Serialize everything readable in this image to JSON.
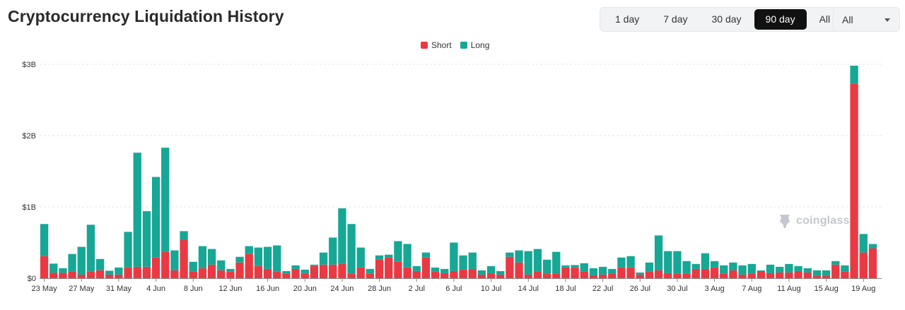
{
  "header": {
    "title": "Cryptocurrency Liquidation History"
  },
  "range_buttons": [
    {
      "label": "1 day",
      "active": false
    },
    {
      "label": "7 day",
      "active": false
    },
    {
      "label": "30 day",
      "active": false
    },
    {
      "label": "90 day",
      "active": true
    },
    {
      "label": "All",
      "active": false
    }
  ],
  "coin_select": {
    "value": "All"
  },
  "watermark": {
    "text": "coinglass"
  },
  "colors": {
    "short": "#ea3943",
    "long": "#16a795",
    "grid": "#e6e6e6"
  },
  "chart_data": {
    "type": "bar",
    "stacked": true,
    "unit": "USD",
    "ylim": [
      0,
      3000000000
    ],
    "yticks": [
      {
        "value": 0,
        "label": "$0"
      },
      {
        "value": 1000000000,
        "label": "$1B"
      },
      {
        "value": 2000000000,
        "label": "$2B"
      },
      {
        "value": 3000000000,
        "label": "$3B"
      }
    ],
    "x_tick_labels": [
      "23 May",
      "27 May",
      "31 May",
      "4 Jun",
      "8 Jun",
      "12 Jun",
      "16 Jun",
      "20 Jun",
      "24 Jun",
      "28 Jun",
      "2 Jul",
      "6 Jul",
      "10 Jul",
      "14 Jul",
      "18 Jul",
      "22 Jul",
      "26 Jul",
      "30 Jul",
      "3 Aug",
      "7 Aug",
      "11 Aug",
      "15 Aug",
      "19 Aug"
    ],
    "categories": [
      "23 May",
      "24 May",
      "25 May",
      "26 May",
      "27 May",
      "28 May",
      "29 May",
      "30 May",
      "31 May",
      "1 Jun",
      "2 Jun",
      "3 Jun",
      "4 Jun",
      "5 Jun",
      "6 Jun",
      "7 Jun",
      "8 Jun",
      "9 Jun",
      "10 Jun",
      "11 Jun",
      "12 Jun",
      "13 Jun",
      "14 Jun",
      "15 Jun",
      "16 Jun",
      "17 Jun",
      "18 Jun",
      "19 Jun",
      "20 Jun",
      "21 Jun",
      "22 Jun",
      "23 Jun",
      "24 Jun",
      "25 Jun",
      "26 Jun",
      "27 Jun",
      "28 Jun",
      "29 Jun",
      "30 Jun",
      "1 Jul",
      "2 Jul",
      "3 Jul",
      "4 Jul",
      "5 Jul",
      "6 Jul",
      "7 Jul",
      "8 Jul",
      "9 Jul",
      "10 Jul",
      "11 Jul",
      "12 Jul",
      "13 Jul",
      "14 Jul",
      "15 Jul",
      "16 Jul",
      "17 Jul",
      "18 Jul",
      "19 Jul",
      "20 Jul",
      "21 Jul",
      "22 Jul",
      "23 Jul",
      "24 Jul",
      "25 Jul",
      "26 Jul",
      "27 Jul",
      "28 Jul",
      "29 Jul",
      "30 Jul",
      "31 Jul",
      "1 Aug",
      "2 Aug",
      "3 Aug",
      "4 Aug",
      "5 Aug",
      "6 Aug",
      "7 Aug",
      "8 Aug",
      "9 Aug",
      "10 Aug",
      "11 Aug",
      "12 Aug",
      "13 Aug",
      "14 Aug",
      "15 Aug",
      "16 Aug",
      "17 Aug",
      "18 Aug",
      "19 Aug",
      "20 Aug"
    ],
    "series": [
      {
        "name": "Short",
        "values": [
          310,
          75,
          75,
          90,
          50,
          90,
          110,
          50,
          50,
          150,
          160,
          160,
          290,
          370,
          110,
          540,
          90,
          140,
          190,
          110,
          90,
          220,
          340,
          170,
          130,
          90,
          60,
          130,
          60,
          170,
          190,
          190,
          200,
          60,
          150,
          60,
          260,
          290,
          230,
          150,
          100,
          290,
          90,
          70,
          100,
          120,
          130,
          50,
          70,
          50,
          300,
          220,
          50,
          90,
          60,
          60,
          150,
          150,
          90,
          40,
          50,
          60,
          150,
          150,
          50,
          90,
          110,
          70,
          60,
          60,
          130,
          130,
          150,
          60,
          110,
          50,
          60,
          100,
          70,
          80,
          80,
          100,
          80,
          30,
          30,
          190,
          90,
          2730,
          360,
          420
        ]
      },
      {
        "name": "Long",
        "values": [
          450,
          130,
          65,
          250,
          390,
          660,
          160,
          55,
          100,
          500,
          1600,
          780,
          1130,
          1460,
          280,
          120,
          140,
          310,
          220,
          140,
          40,
          80,
          110,
          260,
          310,
          370,
          40,
          50,
          60,
          20,
          170,
          380,
          780,
          700,
          280,
          70,
          60,
          40,
          290,
          330,
          70,
          70,
          60,
          60,
          400,
          200,
          230,
          60,
          100,
          50,
          60,
          170,
          330,
          320,
          200,
          310,
          30,
          35,
          120,
          100,
          110,
          70,
          140,
          160,
          30,
          130,
          490,
          310,
          320,
          180,
          70,
          220,
          90,
          120,
          110,
          130,
          140,
          10,
          120,
          80,
          120,
          70,
          60,
          80,
          80,
          50,
          90,
          250,
          260,
          60
        ]
      }
    ],
    "values_scale": "millions USD",
    "legend": "top-center"
  }
}
